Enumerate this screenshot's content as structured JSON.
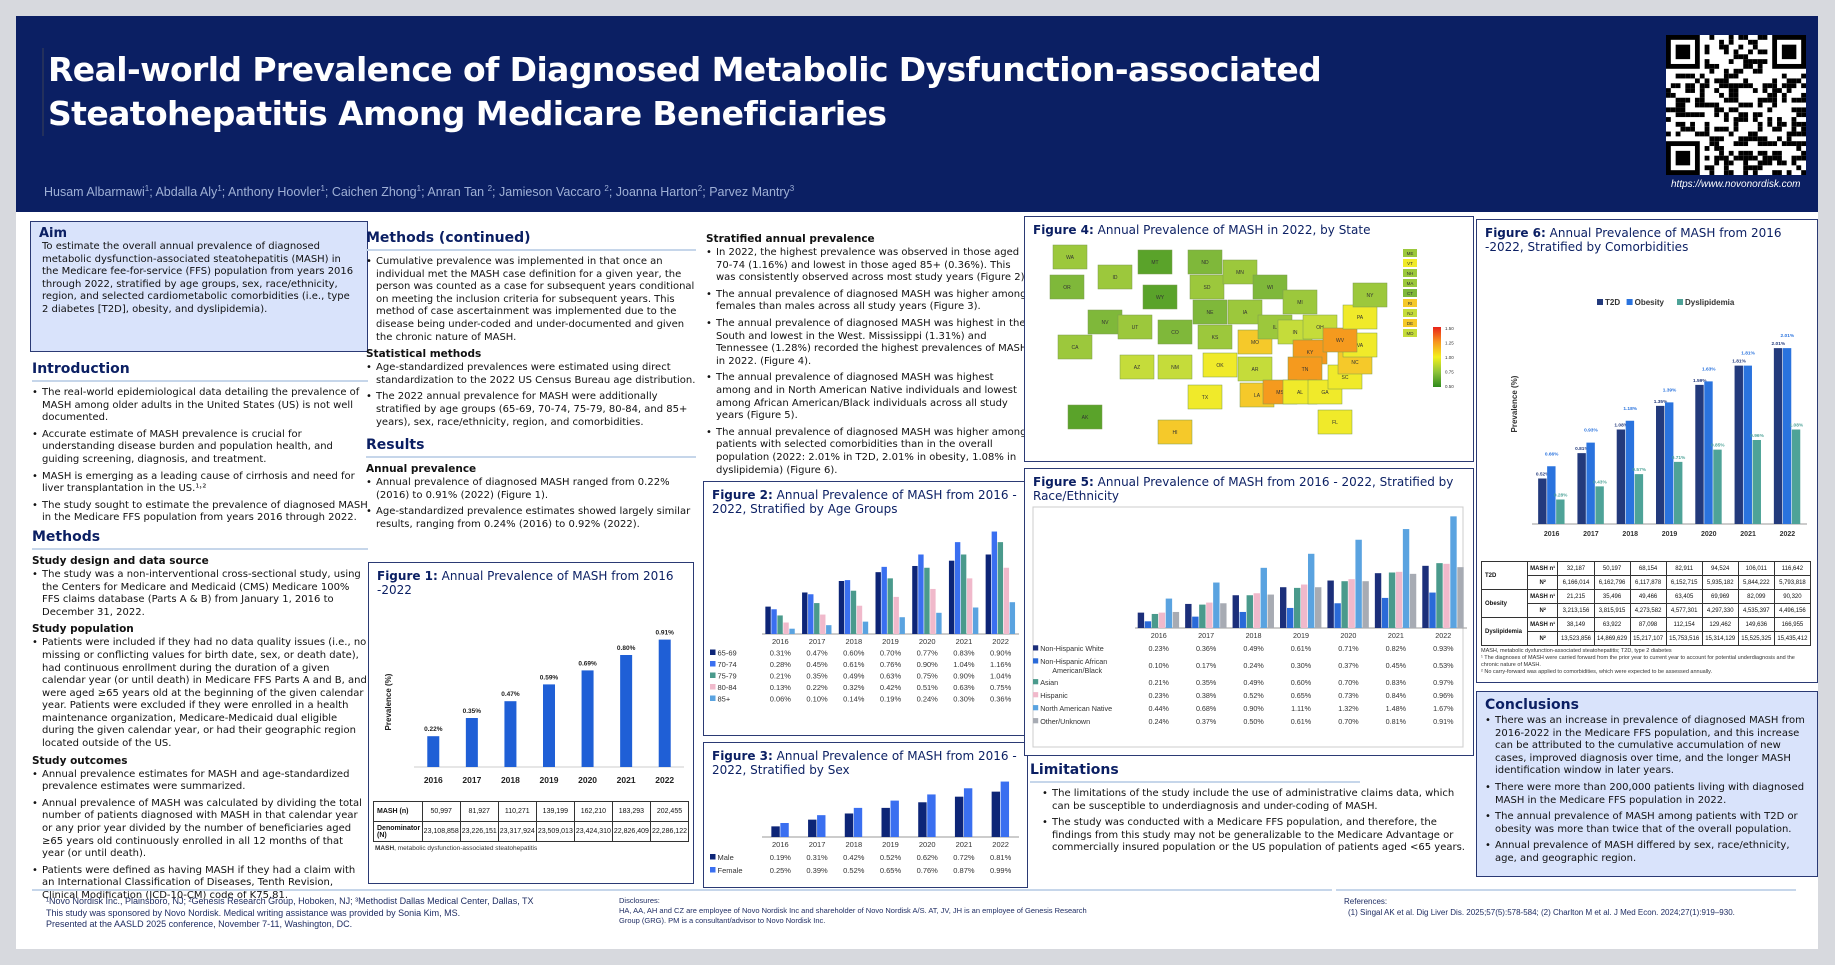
{
  "header": {
    "title_line1": "Real-world Prevalence of Diagnosed Metabolic Dysfunction-associated",
    "title_line2": "Steatohepatitis Among Medicare Beneficiaries",
    "authors": [
      {
        "name": "Husam Albarmawi",
        "aff": "1"
      },
      {
        "name": "Abdalla Aly",
        "aff": "1"
      },
      {
        "name": "Anthony Hoovler",
        "aff": "1"
      },
      {
        "name": "Caichen Zhong",
        "aff": "1"
      },
      {
        "name": "Anran Tan ",
        "aff": "2"
      },
      {
        "name": "Jamieson Vaccaro ",
        "aff": "2"
      },
      {
        "name": "Joanna Harton",
        "aff": "2"
      },
      {
        "name": "Parvez Mantry",
        "aff": "3"
      }
    ],
    "qr_icon": "qr-code-icon",
    "qr_url": "https://www.novonordisk.com"
  },
  "aim": {
    "heading": "Aim",
    "text": "To estimate the overall annual prevalence of diagnosed metabolic dysfunction-associated steatohepatitis (MASH) in the Medicare fee-for-service (FFS) population from years 2016 through 2022, stratified by age groups, sex, race/ethnicity, region, and selected cardiometabolic comorbidities (i.e., type 2 diabetes [T2D], obesity, and dyslipidemia)."
  },
  "introduction": {
    "heading": "Introduction",
    "bullets": [
      "The real-world epidemiological data detailing the prevalence of MASH among older adults in the United States (US) is not well documented.",
      "Accurate estimate of MASH prevalence is crucial for understanding disease burden and population health, and guiding screening, diagnosis, and treatment.",
      "MASH is emerging as a leading cause of cirrhosis and need for liver transplantation in the US.¹˒²",
      "The study sought to estimate the prevalence of diagnosed MASH in the Medicare FFS population from years 2016 through 2022."
    ]
  },
  "methods": {
    "heading": "Methods",
    "design_heading": "Study design and data source",
    "design_bullets": [
      "The study was a non-interventional cross-sectional study, using the Centers for Medicare and Medicaid (CMS) Medicare 100% FFS claims database (Parts A & B) from January 1, 2016 to December 31, 2022."
    ],
    "population_heading": "Study population",
    "population_bullets": [
      "Patients were included if they had no data quality issues (i.e., no missing or conflicting values for birth date, sex, or death date), had continuous enrollment during the duration of a given calendar year (or until death) in Medicare FFS Parts A and B, and were aged ≥65 years old at the beginning of the given calendar year. Patients were excluded if they were enrolled in a health maintenance organization, Medicare-Medicaid dual eligible during the given calendar year, or had their geographic region located outside of the US."
    ],
    "outcomes_heading": "Study outcomes",
    "outcomes_bullets": [
      "Annual prevalence estimates for MASH and age-standardized prevalence estimates were summarized.",
      "Annual prevalence of MASH was calculated by dividing the total number of patients diagnosed with MASH in that calendar year or any prior year divided by the number of beneficiaries aged ≥65 years old continuously enrolled in all 12 months of that year (or until death).",
      "Patients were defined as having MASH if they had a claim with an International Classification of Diseases, Tenth Revision, Clinical Modification (ICD-10-CM) code of K75.81."
    ]
  },
  "methods_cont": {
    "heading": "Methods (continued)",
    "bullets": [
      "Cumulative prevalence was implemented in that once an individual met the MASH case definition for a given year, the person was counted as a case for subsequent years conditional on meeting the inclusion criteria for subsequent years. This method of case ascertainment was implemented due to the disease being under-coded and under-documented and given the chronic nature of MASH."
    ],
    "stat_heading": "Statistical methods",
    "stat_bullets": [
      "Age-standardized prevalences were estimated using direct standardization to the 2022 US Census Bureau age distribution.",
      "The 2022 annual prevalence for MASH were additionally stratified by age groups (65-69, 70-74, 75-79, 80-84, and 85+ years), sex, race/ethnicity, region, and comorbidities."
    ]
  },
  "results": {
    "heading": "Results",
    "annual_heading": "Annual prevalence",
    "annual_bullets": [
      "Annual prevalence of diagnosed MASH ranged from 0.22% (2016) to 0.91% (2022) (Figure 1).",
      "Age-standardized prevalence estimates showed largely similar results, ranging from 0.24% (2016) to 0.92% (2022)."
    ],
    "strat_heading": "Stratified annual prevalence",
    "strat_bullets": [
      "In 2022, the highest prevalence was observed in those aged 70-74 (1.16%) and lowest in those aged 85+ (0.36%). This was consistently observed across most study years (Figure 2).",
      "The annual prevalence of diagnosed MASH was higher among females than males across all study years (Figure 3).",
      "The annual prevalence of diagnosed MASH was highest in the South and lowest in the West. Mississippi (1.31%) and Tennessee (1.28%) recorded the highest prevalences of MASH in 2022. (Figure 4).",
      "The annual prevalence of diagnosed MASH was highest among and in North American Native individuals and lowest among African American/Black individuals across all study years (Figure 5).",
      "The annual prevalence of diagnosed MASH was higher among patients with selected comorbidities than in the overall population (2022: 2.01% in T2D, 2.01% in obesity, 1.08% in dyslipidemia) (Figure 6)."
    ]
  },
  "chart_data": [
    {
      "id": "figure1",
      "type": "bar",
      "label": "Figure 1:",
      "title": "Annual Prevalence of MASH from 2016 -2022",
      "ylabel": "Prevalence (%)",
      "xlabel": "",
      "categories": [
        "2016",
        "2017",
        "2018",
        "2019",
        "2020",
        "2021",
        "2022"
      ],
      "values": [
        0.22,
        0.35,
        0.47,
        0.59,
        0.69,
        0.8,
        0.91
      ],
      "value_labels": [
        "0.22%",
        "0.35%",
        "0.47%",
        "0.59%",
        "0.69%",
        "0.80%",
        "0.91%"
      ],
      "ylim": [
        0,
        1.0
      ],
      "color": "#1f5fd6",
      "table": {
        "rows": [
          {
            "label": "MASH (n)",
            "values": [
              "50,997",
              "81,927",
              "110,271",
              "139,199",
              "162,210",
              "183,293",
              "202,455"
            ]
          },
          {
            "label": "Denominator (N)",
            "values": [
              "23,108,858",
              "23,226,151",
              "23,317,924",
              "23,509,013",
              "23,424,310",
              "22,826,409",
              "22,286,122"
            ]
          }
        ]
      },
      "note_bold": "MASH",
      "note": ", metabolic dysfunction-associated steatohepatitis"
    },
    {
      "id": "figure2",
      "type": "bar",
      "label": "Figure 2:",
      "title": "Annual Prevalence of MASH from 2016 - 2022, Stratified by Age Groups",
      "categories": [
        "2016",
        "2017",
        "2018",
        "2019",
        "2020",
        "2021",
        "2022"
      ],
      "ylim": [
        0,
        1.2
      ],
      "series": [
        {
          "name": "65-69",
          "color": "#0d2577",
          "values": [
            0.31,
            0.47,
            0.6,
            0.7,
            0.77,
            0.83,
            0.9
          ]
        },
        {
          "name": "70-74",
          "color": "#3a6ff0",
          "values": [
            0.28,
            0.45,
            0.61,
            0.76,
            0.9,
            1.04,
            1.16
          ]
        },
        {
          "name": "75-79",
          "color": "#4a9a8c",
          "values": [
            0.21,
            0.35,
            0.49,
            0.63,
            0.75,
            0.9,
            1.04
          ]
        },
        {
          "name": "80-84",
          "color": "#f0b9cb",
          "values": [
            0.13,
            0.22,
            0.32,
            0.42,
            0.51,
            0.63,
            0.75
          ]
        },
        {
          "name": "85+",
          "color": "#5aa3e0",
          "values": [
            0.06,
            0.1,
            0.14,
            0.19,
            0.24,
            0.3,
            0.36
          ]
        }
      ]
    },
    {
      "id": "figure3",
      "type": "bar",
      "label": "Figure 3:",
      "title": "Annual Prevalence of MASH from 2016 - 2022, Stratified by Sex",
      "categories": [
        "2016",
        "2017",
        "2018",
        "2019",
        "2020",
        "2021",
        "2022"
      ],
      "ylim": [
        0,
        1.0
      ],
      "series": [
        {
          "name": "Male",
          "color": "#0d2577",
          "values": [
            0.19,
            0.31,
            0.42,
            0.52,
            0.62,
            0.72,
            0.81
          ]
        },
        {
          "name": "Female",
          "color": "#3a6ff0",
          "values": [
            0.25,
            0.39,
            0.52,
            0.65,
            0.76,
            0.87,
            0.99
          ]
        }
      ]
    },
    {
      "id": "figure4",
      "type": "heatmap",
      "label": "Figure 4:",
      "title": "Annual Prevalence of MASH in 2022, by State",
      "colorbar": {
        "min": 0.5,
        "max": 1.5,
        "ticks": [
          "1.50",
          "1.25",
          "1.00",
          "0.75",
          "0.50"
        ],
        "colors": [
          "#e8231a",
          "#f7961e",
          "#f3f01c",
          "#8fc43a",
          "#2f8a1c"
        ]
      },
      "highlights": [
        {
          "state": "MS",
          "value": 1.31
        },
        {
          "state": "TN",
          "value": 1.28
        }
      ],
      "state_labels": [
        "WA",
        "OR",
        "CA",
        "NV",
        "ID",
        "MT",
        "WY",
        "UT",
        "AZ",
        "CO",
        "NM",
        "ND",
        "SD",
        "NE",
        "KS",
        "OK",
        "TX",
        "MN",
        "IA",
        "MO",
        "AR",
        "LA",
        "WI",
        "IL",
        "MI",
        "IN",
        "OH",
        "KY",
        "TN",
        "MS",
        "AL",
        "GA",
        "FL",
        "SC",
        "NC",
        "VA",
        "WV",
        "PA",
        "NY",
        "AK",
        "HI"
      ],
      "inset_labels": [
        "ME",
        "VT",
        "NH",
        "MA",
        "CT",
        "RI",
        "NJ",
        "DE",
        "MD"
      ]
    },
    {
      "id": "figure5",
      "type": "bar",
      "label": "Figure 5:",
      "title": "Annual Prevalence of MASH from 2016 - 2022, Stratified by Race/Ethnicity",
      "categories": [
        "2016",
        "2017",
        "2018",
        "2019",
        "2020",
        "2021",
        "2022"
      ],
      "ylim": [
        0,
        1.75
      ],
      "series": [
        {
          "name": "Non-Hispanic White",
          "color": "#1c2f7a",
          "values": [
            0.23,
            0.36,
            0.49,
            0.61,
            0.71,
            0.82,
            0.93
          ]
        },
        {
          "name": "Non-Hispanic African American/Black",
          "color": "#2a6ad8",
          "values": [
            0.1,
            0.17,
            0.24,
            0.3,
            0.37,
            0.45,
            0.53
          ]
        },
        {
          "name": "Asian",
          "color": "#4a9a8c",
          "values": [
            0.21,
            0.35,
            0.49,
            0.6,
            0.7,
            0.83,
            0.97
          ]
        },
        {
          "name": "Hispanic",
          "color": "#f0b9cb",
          "values": [
            0.23,
            0.38,
            0.52,
            0.65,
            0.73,
            0.84,
            0.96
          ]
        },
        {
          "name": "North American Native",
          "color": "#5aa3e0",
          "values": [
            0.44,
            0.68,
            0.9,
            1.11,
            1.32,
            1.48,
            1.67
          ]
        },
        {
          "name": "Other/Unknown",
          "color": "#a7abb3",
          "values": [
            0.24,
            0.37,
            0.5,
            0.61,
            0.7,
            0.81,
            0.91
          ]
        }
      ]
    },
    {
      "id": "figure6",
      "type": "bar",
      "label": "Figure 6:",
      "title": "Annual Prevalence of MASH from 2016 -2022, Stratified by Comorbidities",
      "ylabel": "Prevalence (%)",
      "categories": [
        "2016",
        "2017",
        "2018",
        "2019",
        "2020",
        "2021",
        "2022"
      ],
      "ylim": [
        0,
        2.4
      ],
      "legend": "top-center",
      "series": [
        {
          "name": "T2D",
          "color": "#233a7c",
          "values": [
            0.52,
            0.81,
            1.08,
            1.35,
            1.59,
            1.81,
            2.01
          ],
          "labels": [
            "0.52%",
            "0.81%",
            "1.08%",
            "1.35%",
            "1.59%",
            "1.81%",
            "2.01%"
          ]
        },
        {
          "name": "Obesity",
          "color": "#2a73de",
          "values": [
            0.66,
            0.93,
            1.18,
            1.39,
            1.63,
            1.81,
            2.01
          ],
          "labels": [
            "0.66%",
            "0.93%",
            "1.18%",
            "1.39%",
            "1.63%",
            "1.81%",
            "2.01%"
          ]
        },
        {
          "name": "Dyslipidemia",
          "color": "#4ea398",
          "values": [
            0.28,
            0.43,
            0.57,
            0.71,
            0.85,
            0.96,
            1.08
          ],
          "labels": [
            "0.28%",
            "0.43%",
            "0.57%",
            "0.71%",
            "0.85%",
            "0.96%",
            "1.08%"
          ]
        }
      ],
      "table": {
        "groups": [
          {
            "name": "T2D",
            "rows": [
              {
                "label": "MASH n¹",
                "values": [
                  "32,187",
                  "50,197",
                  "68,154",
                  "82,911",
                  "94,524",
                  "106,011",
                  "116,642"
                ]
              },
              {
                "label": "N²",
                "values": [
                  "6,166,014",
                  "6,162,796",
                  "6,117,878",
                  "6,152,715",
                  "5,935,182",
                  "5,844,222",
                  "5,793,818"
                ]
              }
            ]
          },
          {
            "name": "Obesity",
            "rows": [
              {
                "label": "MASH n¹",
                "values": [
                  "21,215",
                  "35,496",
                  "49,466",
                  "63,405",
                  "69,969",
                  "82,099",
                  "90,320"
                ]
              },
              {
                "label": "N²",
                "values": [
                  "3,213,156",
                  "3,815,915",
                  "4,273,582",
                  "4,577,301",
                  "4,297,330",
                  "4,535,397",
                  "4,496,156"
                ]
              }
            ]
          },
          {
            "name": "Dyslipidemia",
            "rows": [
              {
                "label": "MASH n¹",
                "values": [
                  "38,149",
                  "63,922",
                  "87,098",
                  "112,154",
                  "129,462",
                  "149,636",
                  "166,955"
                ]
              },
              {
                "label": "N²",
                "values": [
                  "13,523,856",
                  "14,869,629",
                  "15,217,107",
                  "15,753,516",
                  "15,314,129",
                  "15,525,325",
                  "15,435,412"
                ]
              }
            ]
          }
        ]
      },
      "notes": [
        "MASH, metabolic dysfunction-associated steatohepatitis; T2D, type 2 diabetes",
        "¹ The diagnoses of MASH were carried forward from the prior year to current year to account for potential underdiagnosis and the chronic nature of MASH.",
        "² No carry-forward was applied to comorbidities, which were expected to be assessed annually."
      ]
    }
  ],
  "limitations": {
    "heading": "Limitations",
    "bullets": [
      "The limitations of the study include the use of administrative claims data, which can be susceptible to underdiagnosis and under-coding of MASH.",
      "The study was conducted with a Medicare FFS population, and therefore, the findings from this study may not be generalizable to the Medicare Advantage or commercially insured population or the US population of patients aged <65 years."
    ]
  },
  "conclusions": {
    "heading": "Conclusions",
    "bullets": [
      "There was an increase in prevalence of diagnosed MASH from 2016-2022 in the Medicare FFS population, and this increase can be attributed to the cumulative accumulation of new cases, improved diagnosis over time, and the longer MASH identification window in later years.",
      "There were more than 200,000 patients living with diagnosed MASH in the Medicare FFS population in 2022.",
      "The annual prevalence of MASH among patients with T2D or obesity was more than twice that of the overall population.",
      "Annual prevalence of MASH differed by sex, race/ethnicity, age, and geographic region."
    ]
  },
  "footer": {
    "affiliations": "¹Novo Nordisk Inc., Plainsboro, NJ; ²Genesis Research Group, Hoboken, NJ; ³Methodist Dallas Medical Center, Dallas, TX",
    "sponsor": "This study was sponsored by Novo Nordisk. Medical writing assistance was provided by Sonia Kim, MS.",
    "presented": "Presented at the AASLD 2025 conference, November 7-11, Washington, DC.",
    "disclosures_heading": "Disclosures:",
    "disclosures": "HA, AA, AH and CZ are employee of Novo Nordisk Inc and shareholder of Novo Nordisk A/S. AT, JV, JH is an employee of Genesis Research Group (GRG). PM is a consultant/advisor to Novo Nordisk Inc.",
    "references_heading": "References:",
    "references": "(1) Singal AK et al. Dig Liver Dis. 2025;57(5):578-584; (2) Charlton M et al. J Med Econ. 2024;27(1):919–930."
  }
}
